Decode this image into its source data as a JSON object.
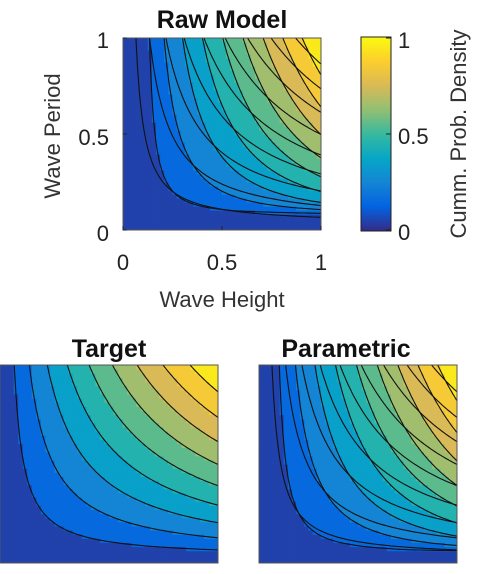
{
  "colormap": [
    "#352a87",
    "#0363e1",
    "#1485d4",
    "#06a7c6",
    "#38b99e",
    "#92bf73",
    "#d9ba56",
    "#fcce2e",
    "#f9fb0e"
  ],
  "chart_data": [
    {
      "type": "contour",
      "title": "Raw Model",
      "xlabel": "Wave Height",
      "ylabel": "Wave Period",
      "xlim": [
        0,
        1
      ],
      "ylim": [
        0,
        1
      ],
      "xticks": [
        "0",
        "0.5",
        "1"
      ],
      "yticks": [
        "0",
        "0.5",
        "1"
      ],
      "z_range": [
        0,
        1
      ],
      "filled_contours": true,
      "contour_levels": [
        0.1,
        0.2,
        0.3,
        0.4,
        0.5,
        0.6,
        0.7,
        0.8,
        0.9
      ],
      "overlay": "dashed contour lines of Target",
      "colorbar": {
        "label": "Cumm. Prob. Density",
        "ticks": [
          "0",
          "0.5",
          "1"
        ],
        "range": [
          0,
          1
        ]
      }
    },
    {
      "type": "contour",
      "title": "Target",
      "xlim": [
        0,
        1
      ],
      "ylim": [
        0,
        1
      ],
      "filled_contours": true,
      "contour_levels": [
        0.1,
        0.2,
        0.3,
        0.4,
        0.5,
        0.6,
        0.7,
        0.8,
        0.9
      ]
    },
    {
      "type": "contour",
      "title": "Parametric",
      "xlim": [
        0,
        1
      ],
      "ylim": [
        0,
        1
      ],
      "filled_contours": true,
      "contour_levels": [
        0.1,
        0.2,
        0.3,
        0.4,
        0.5,
        0.6,
        0.7,
        0.8,
        0.9
      ],
      "overlay": "dashed contour lines of Target"
    }
  ]
}
